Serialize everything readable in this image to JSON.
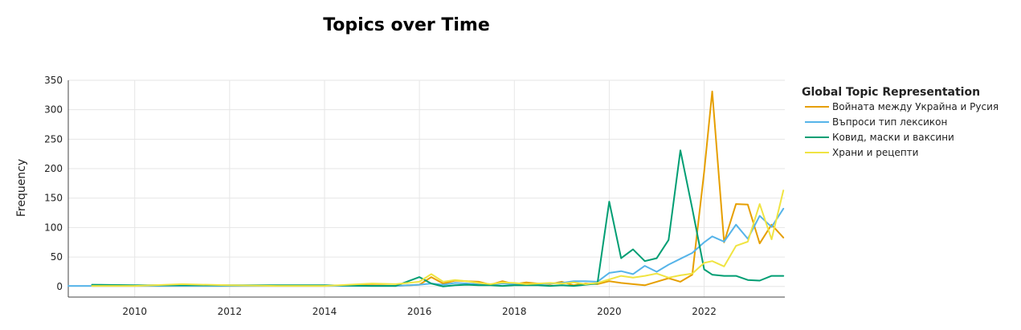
{
  "chart_data": {
    "type": "line",
    "title": "Topics over Time",
    "xlabel": "",
    "ylabel": "Frequency",
    "xlim": [
      2008.6,
      2023.7
    ],
    "ylim": [
      -18,
      350
    ],
    "x_ticks": [
      2010,
      2012,
      2014,
      2016,
      2018,
      2020,
      2022
    ],
    "y_ticks": [
      0,
      50,
      100,
      150,
      200,
      250,
      300,
      350
    ],
    "grid": true,
    "legend_title": "Global Topic Representation",
    "legend_position": "right",
    "series": [
      {
        "name": "Войната между Украйна и Русия",
        "color": "#E69F00",
        "x": [
          2009.1,
          2010.0,
          2011.0,
          2012.0,
          2013.0,
          2014.0,
          2015.0,
          2015.5,
          2016.0,
          2016.25,
          2016.5,
          2016.75,
          2017.0,
          2017.25,
          2017.5,
          2017.75,
          2018.0,
          2018.25,
          2018.5,
          2018.75,
          2019.0,
          2019.25,
          2019.5,
          2019.75,
          2020.0,
          2020.25,
          2020.5,
          2020.75,
          2021.0,
          2021.25,
          2021.5,
          2021.75,
          2022.0,
          2022.17,
          2022.42,
          2022.67,
          2022.92,
          2023.17,
          2023.42,
          2023.67
        ],
        "y": [
          1,
          1,
          1,
          1,
          1,
          1,
          2,
          1,
          3,
          16,
          5,
          10,
          9,
          8,
          3,
          9,
          4,
          7,
          5,
          4,
          8,
          2,
          5,
          4,
          9,
          6,
          4,
          2,
          8,
          14,
          8,
          20,
          195,
          331,
          75,
          140,
          139,
          73,
          105,
          83
        ]
      },
      {
        "name": "Въпроси тип лексикон",
        "color": "#56B4E9",
        "x": [
          2008.6,
          2009.0,
          2010.0,
          2011.0,
          2012.0,
          2013.0,
          2014.0,
          2015.0,
          2015.5,
          2016.0,
          2016.25,
          2016.5,
          2016.75,
          2017.0,
          2017.25,
          2017.5,
          2017.75,
          2018.0,
          2018.25,
          2018.5,
          2018.75,
          2019.0,
          2019.25,
          2019.5,
          2019.75,
          2020.0,
          2020.25,
          2020.5,
          2020.75,
          2021.0,
          2021.25,
          2021.5,
          2021.75,
          2022.0,
          2022.17,
          2022.42,
          2022.67,
          2022.92,
          2023.17,
          2023.42,
          2023.67
        ],
        "y": [
          1,
          1,
          1,
          1,
          1,
          1,
          1,
          1,
          1,
          3,
          5,
          3,
          6,
          5,
          4,
          3,
          5,
          4,
          3,
          4,
          5,
          6,
          9,
          9,
          8,
          23,
          26,
          21,
          35,
          25,
          37,
          47,
          57,
          75,
          85,
          76,
          105,
          81,
          120,
          101,
          132
        ]
      },
      {
        "name": "Ковид, маски и ваксини",
        "color": "#009E73",
        "x": [
          2009.1,
          2010.0,
          2011.0,
          2012.0,
          2013.0,
          2014.0,
          2015.0,
          2015.5,
          2016.0,
          2016.25,
          2016.5,
          2016.75,
          2017.0,
          2017.25,
          2017.5,
          2017.75,
          2018.0,
          2018.25,
          2018.5,
          2018.75,
          2019.0,
          2019.25,
          2019.5,
          2019.75,
          2020.0,
          2020.25,
          2020.5,
          2020.75,
          2021.0,
          2021.25,
          2021.5,
          2021.75,
          2022.0,
          2022.17,
          2022.42,
          2022.67,
          2022.92,
          2023.17,
          2023.42,
          2023.67
        ],
        "y": [
          3,
          2,
          2,
          2,
          2,
          2,
          1,
          1,
          16,
          5,
          0,
          2,
          3,
          2,
          2,
          1,
          2,
          2,
          2,
          1,
          2,
          1,
          3,
          5,
          144,
          48,
          63,
          43,
          48,
          79,
          231,
          132,
          29,
          20,
          18,
          18,
          11,
          10,
          18,
          18
        ]
      },
      {
        "name": "Храни и рецепти",
        "color": "#F0E442",
        "x": [
          2009.1,
          2010.0,
          2011.0,
          2012.0,
          2013.0,
          2014.0,
          2015.0,
          2015.5,
          2016.0,
          2016.25,
          2016.5,
          2016.75,
          2017.0,
          2017.25,
          2017.5,
          2017.75,
          2018.0,
          2018.25,
          2018.5,
          2018.75,
          2019.0,
          2019.25,
          2019.5,
          2019.75,
          2020.0,
          2020.25,
          2020.5,
          2020.75,
          2021.0,
          2021.25,
          2021.5,
          2021.75,
          2022.0,
          2022.17,
          2022.42,
          2022.67,
          2022.92,
          2023.17,
          2023.42,
          2023.67
        ],
        "y": [
          1,
          1,
          4,
          2,
          1,
          1,
          5,
          4,
          8,
          21,
          8,
          11,
          9,
          6,
          4,
          7,
          6,
          4,
          5,
          6,
          5,
          7,
          4,
          6,
          12,
          18,
          15,
          18,
          22,
          15,
          19,
          22,
          40,
          43,
          34,
          69,
          76,
          140,
          80,
          163
        ]
      }
    ]
  }
}
